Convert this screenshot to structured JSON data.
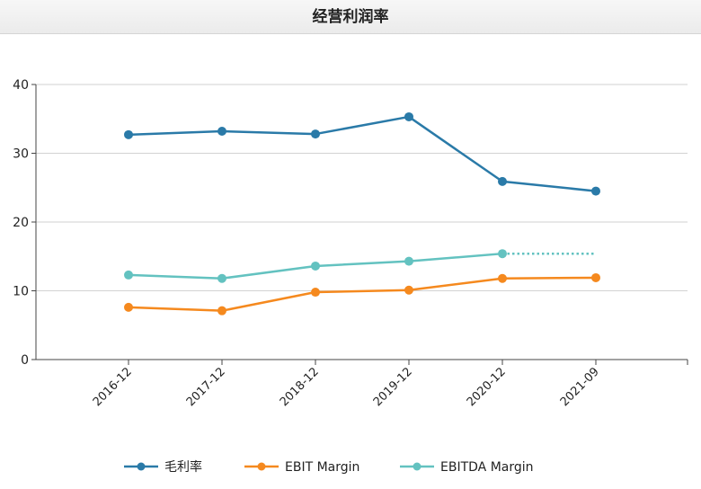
{
  "title": "经营利润率",
  "colors": {
    "gross": "#2a7aa8",
    "ebit": "#f5891e",
    "ebitda": "#63c2c0",
    "grid": "#d2d2d2",
    "axis": "#444444"
  },
  "chart_data": {
    "type": "line",
    "title": "经营利润率",
    "categories": [
      "2016-12",
      "2017-12",
      "2018-12",
      "2019-12",
      "2020-12",
      "2021-09"
    ],
    "y_ticks": [
      0,
      10,
      20,
      30,
      40
    ],
    "ylim": [
      0,
      40
    ],
    "grid": true,
    "legend_position": "bottom",
    "series": [
      {
        "name": "毛利率",
        "color": "#2a7aa8",
        "values": [
          32.7,
          33.2,
          32.8,
          35.3,
          25.9,
          24.5
        ],
        "dotted_tail": false
      },
      {
        "name": "EBIT Margin",
        "color": "#f5891e",
        "values": [
          7.6,
          7.1,
          9.8,
          10.1,
          11.8,
          11.9
        ],
        "dotted_tail": false
      },
      {
        "name": "EBITDA Margin",
        "color": "#63c2c0",
        "values": [
          12.3,
          11.8,
          13.6,
          14.3,
          15.4,
          null
        ],
        "dotted_tail": true
      }
    ]
  }
}
